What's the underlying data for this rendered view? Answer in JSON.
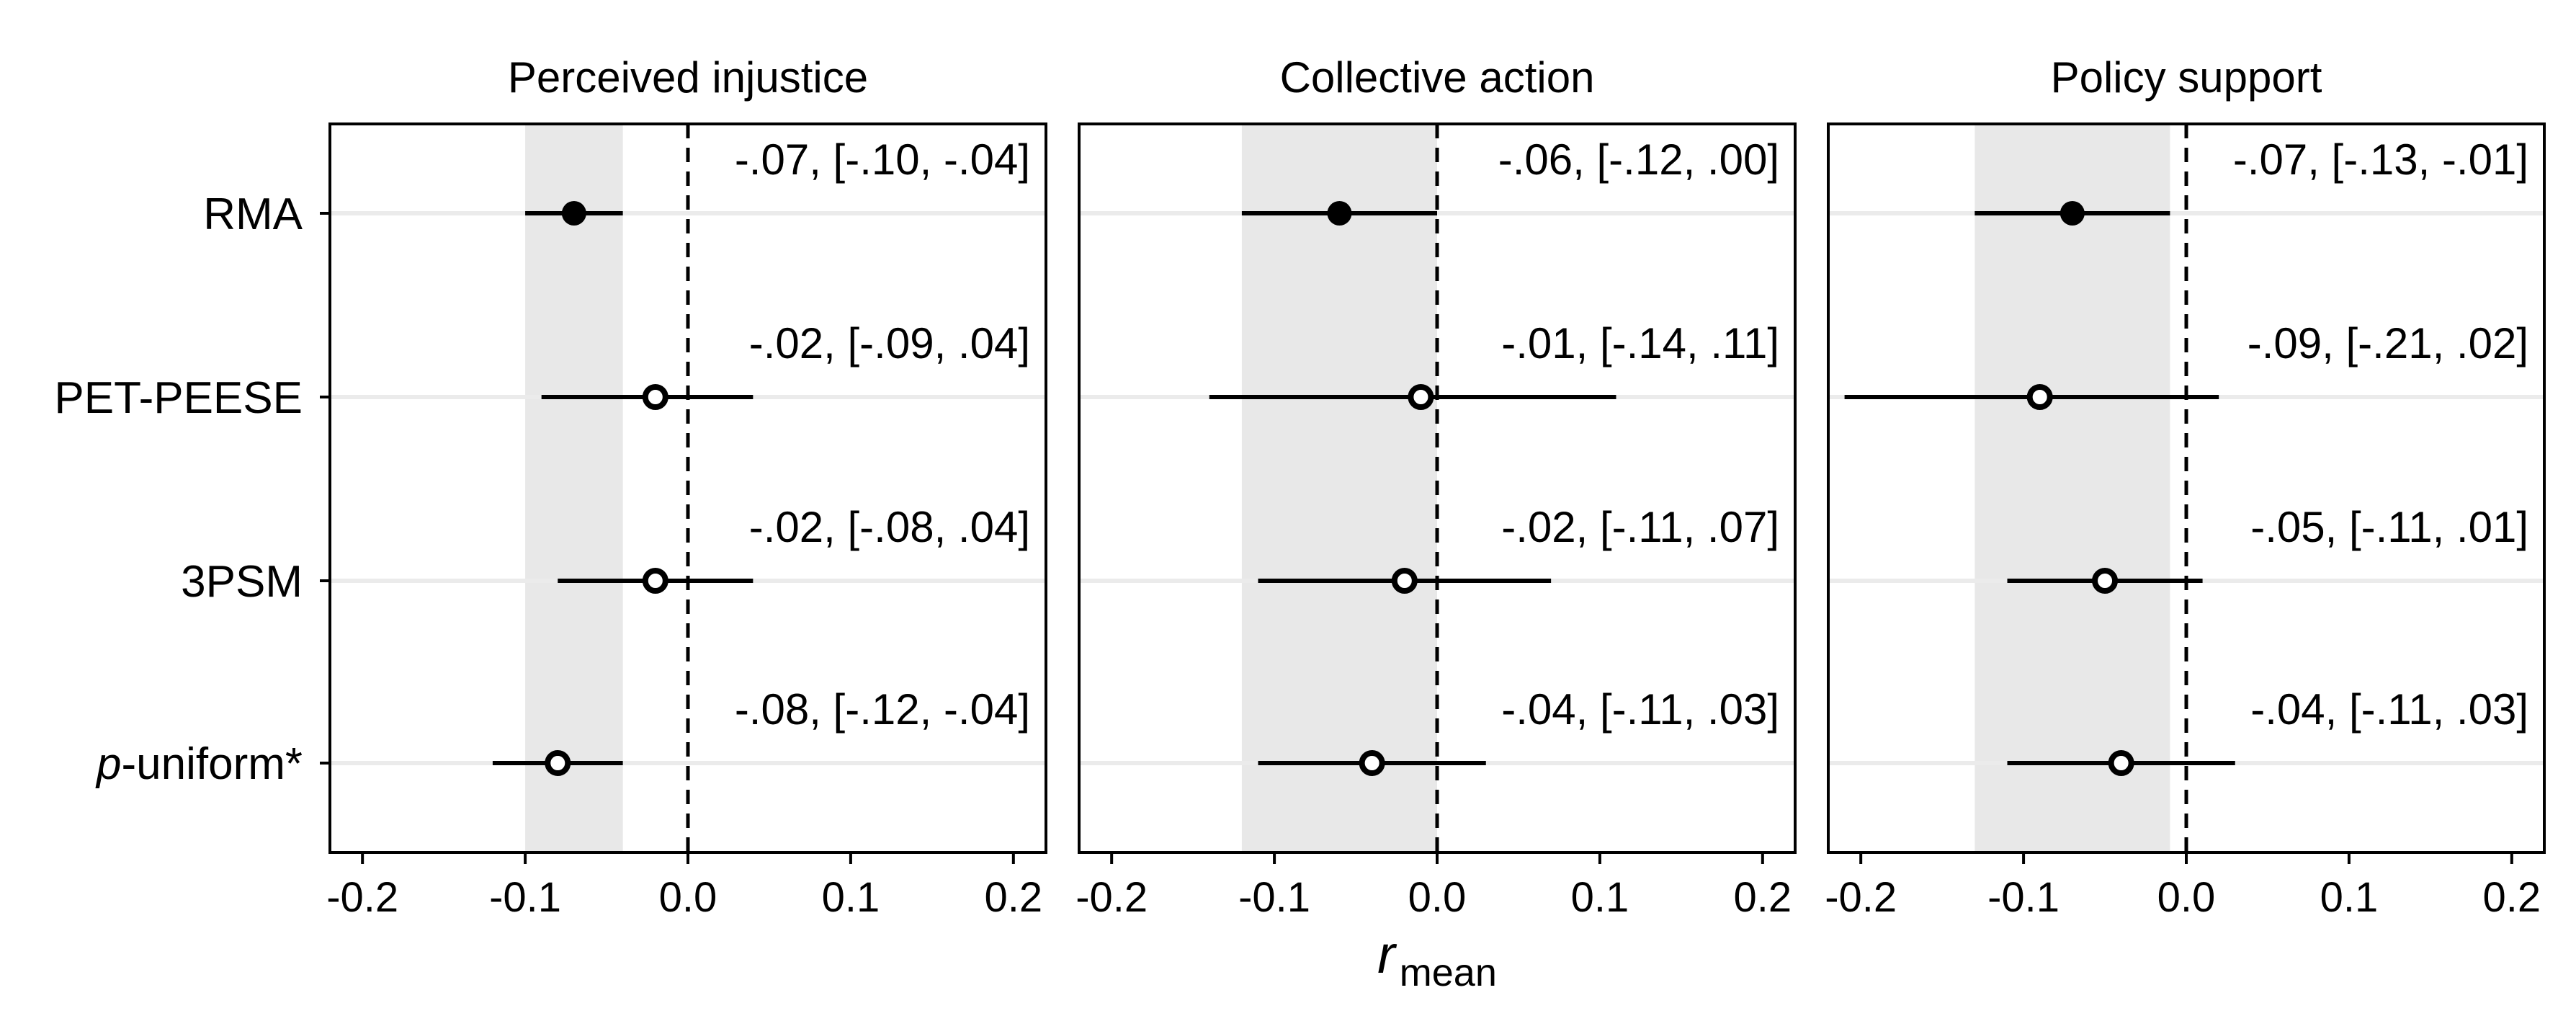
{
  "chart_data": [
    {
      "type": "forest",
      "title": "Perceived injustice",
      "methods": [
        "RMA",
        "PET-PEESE",
        "3PSM",
        "p-uniform*"
      ],
      "estimates": [
        -0.07,
        -0.02,
        -0.02,
        -0.08
      ],
      "ci_low": [
        -0.1,
        -0.09,
        -0.08,
        -0.12
      ],
      "ci_high": [
        -0.04,
        0.04,
        0.04,
        -0.04
      ],
      "filled": [
        true,
        false,
        false,
        false
      ],
      "labels": [
        "-.07, [-.10, -.04]",
        "-.02, [-.09, .04]",
        "-.02, [-.08, .04]",
        "-.08, [-.12, -.04]"
      ],
      "shaded_band": [
        -0.1,
        -0.04
      ],
      "reference_line": 0,
      "xlim": [
        -0.22,
        0.22
      ],
      "xticks": [
        -0.2,
        -0.1,
        0.0,
        0.1,
        0.2
      ],
      "xtick_labels": [
        "-0.2",
        "-0.1",
        "0.0",
        "0.1",
        "0.2"
      ]
    },
    {
      "type": "forest",
      "title": "Collective action",
      "methods": [
        "RMA",
        "PET-PEESE",
        "3PSM",
        "p-uniform*"
      ],
      "estimates": [
        -0.06,
        -0.01,
        -0.02,
        -0.04
      ],
      "ci_low": [
        -0.12,
        -0.14,
        -0.11,
        -0.11
      ],
      "ci_high": [
        0.0,
        0.11,
        0.07,
        0.03
      ],
      "filled": [
        true,
        false,
        false,
        false
      ],
      "labels": [
        "-.06, [-.12, .00]",
        "-.01, [-.14, .11]",
        "-.02, [-.11, .07]",
        "-.04, [-.11, .03]"
      ],
      "shaded_band": [
        -0.12,
        0.0
      ],
      "reference_line": 0,
      "xlim": [
        -0.22,
        0.22
      ],
      "xticks": [
        -0.2,
        -0.1,
        0.0,
        0.1,
        0.2
      ],
      "xtick_labels": [
        "-0.2",
        "-0.1",
        "0.0",
        "0.1",
        "0.2"
      ]
    },
    {
      "type": "forest",
      "title": "Policy support",
      "methods": [
        "RMA",
        "PET-PEESE",
        "3PSM",
        "p-uniform*"
      ],
      "estimates": [
        -0.07,
        -0.09,
        -0.05,
        -0.04
      ],
      "ci_low": [
        -0.13,
        -0.21,
        -0.11,
        -0.11
      ],
      "ci_high": [
        -0.01,
        0.02,
        0.01,
        0.03
      ],
      "filled": [
        true,
        false,
        false,
        false
      ],
      "labels": [
        "-.07, [-.13, -.01]",
        "-.09, [-.21, .02]",
        "-.05, [-.11, .01]",
        "-.04, [-.11, .03]"
      ],
      "shaded_band": [
        -0.13,
        -0.01
      ],
      "reference_line": 0,
      "xlim": [
        -0.22,
        0.22
      ],
      "xticks": [
        -0.2,
        -0.1,
        0.0,
        0.1,
        0.2
      ],
      "xtick_labels": [
        "-0.2",
        "-0.1",
        "0.0",
        "0.1",
        "0.2"
      ]
    }
  ],
  "y_axis": {
    "labels": [
      {
        "italic": "",
        "rest": "RMA"
      },
      {
        "italic": "",
        "rest": "PET-PEESE"
      },
      {
        "italic": "",
        "rest": "3PSM"
      },
      {
        "italic": "p",
        "rest": "-uniform*"
      }
    ]
  },
  "x_axis": {
    "label_main": "r",
    "label_sub": "mean"
  },
  "colors": {
    "band": "#e8e8e8",
    "gridline": "#ebebeb",
    "ink": "#000000",
    "open_fill": "#ffffff"
  }
}
